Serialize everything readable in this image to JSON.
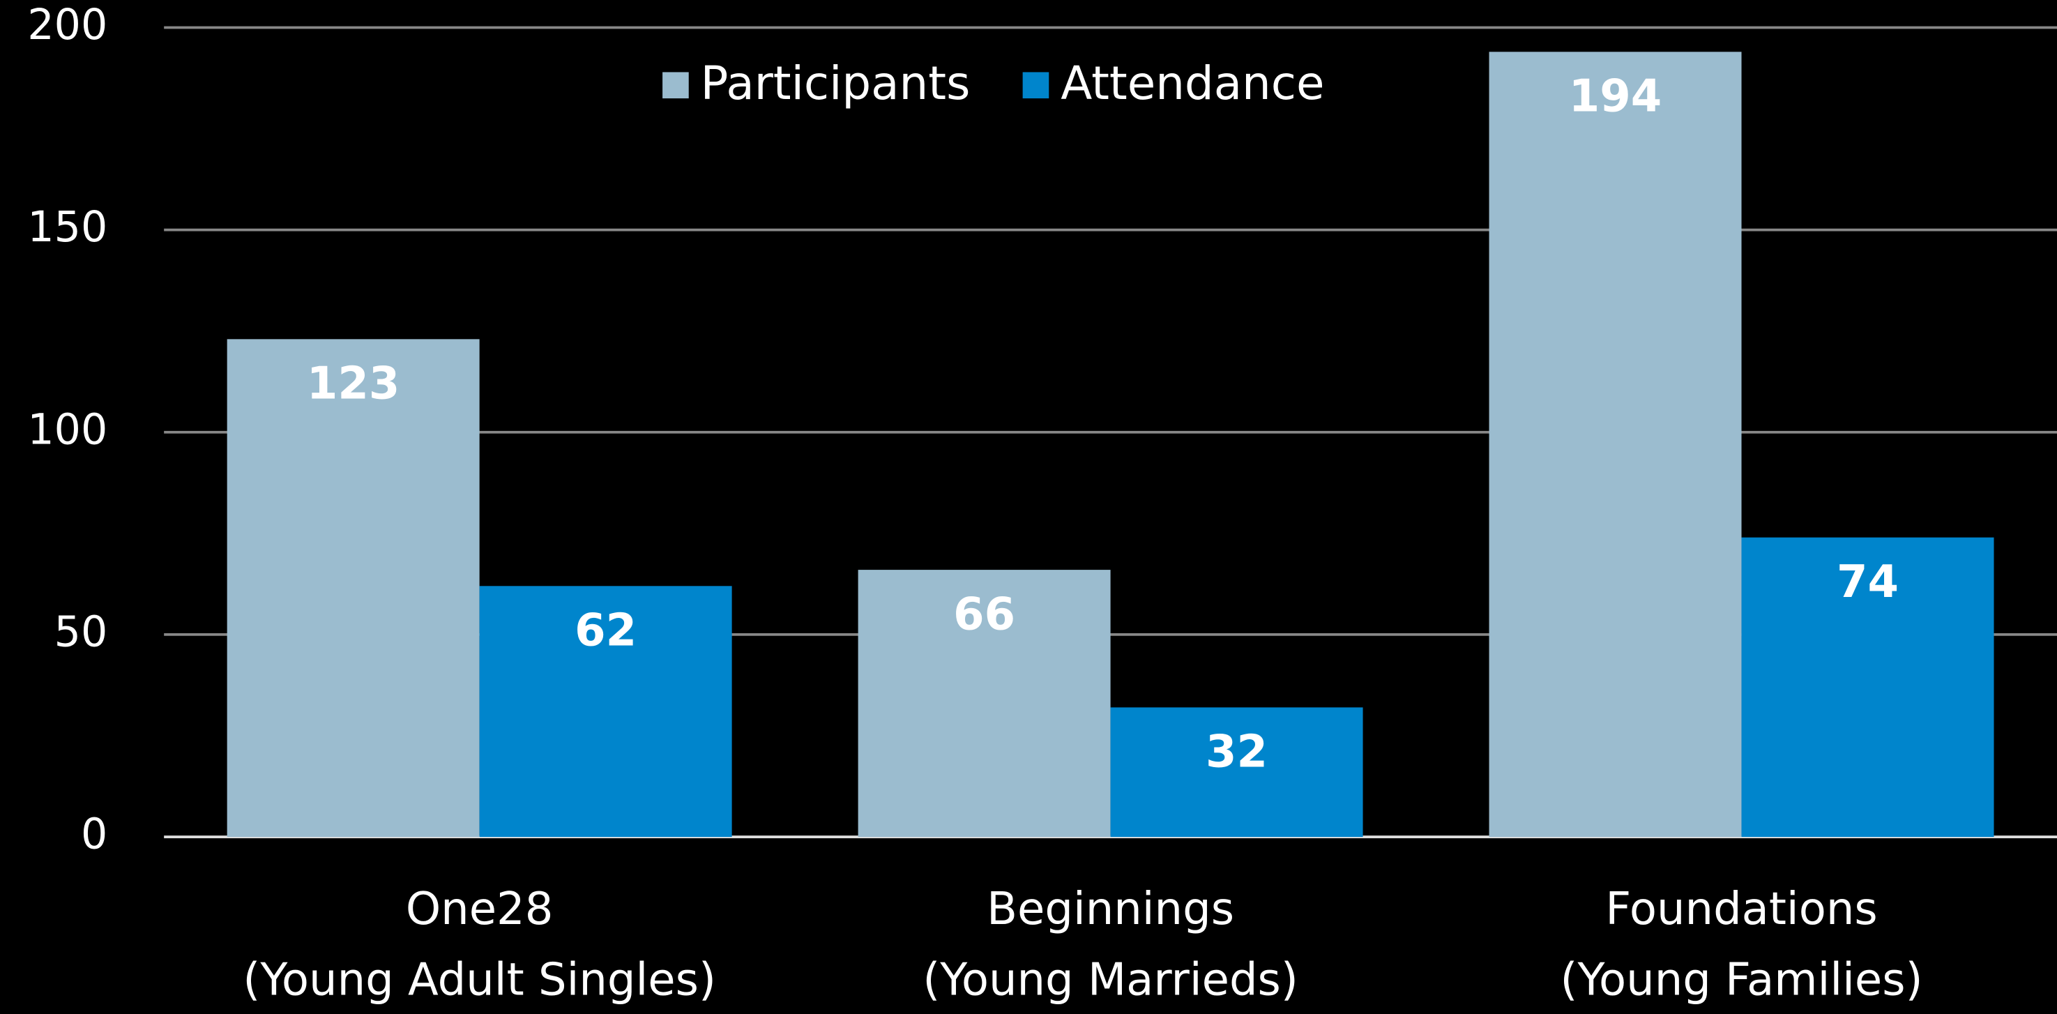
{
  "chart_data": {
    "type": "bar",
    "categories": [
      [
        "One28",
        "(Young Adult Singles)"
      ],
      [
        "Beginnings",
        "(Young Marrieds)"
      ],
      [
        "Foundations",
        "(Young Families)"
      ]
    ],
    "series": [
      {
        "name": "Participants",
        "color": "#9bbccf",
        "values": [
          123,
          66,
          194
        ]
      },
      {
        "name": "Attendance",
        "color": "#0085cc",
        "values": [
          62,
          32,
          74
        ]
      }
    ],
    "ylim": [
      0,
      200
    ],
    "yticks": [
      0,
      50,
      100,
      150,
      200
    ],
    "grid": true,
    "legend": "top"
  }
}
